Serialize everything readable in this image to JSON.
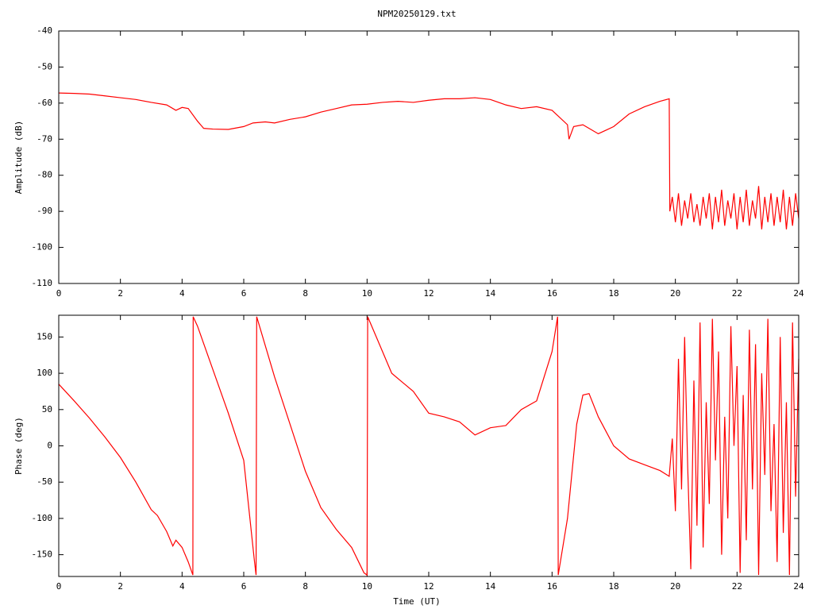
{
  "chart_data": [
    {
      "type": "line",
      "title": "NPM20250129.txt",
      "ylabel": "Amplitude (dB)",
      "color": "#ff0000",
      "xlim": [
        0,
        24
      ],
      "xticks": [
        0,
        2,
        4,
        6,
        8,
        10,
        12,
        14,
        16,
        18,
        20,
        22,
        24
      ],
      "ylim": [
        -110,
        -40
      ],
      "yticks": [
        -110,
        -100,
        -90,
        -80,
        -70,
        -60,
        -50,
        -40
      ],
      "x": [
        0,
        0.5,
        1,
        1.5,
        2,
        2.5,
        3,
        3.5,
        3.8,
        4,
        4.2,
        4.5,
        4.7,
        5,
        5.5,
        6,
        6.3,
        6.7,
        7,
        7.5,
        8,
        8.5,
        9,
        9.5,
        10,
        10.5,
        11,
        11.5,
        12,
        12.5,
        13,
        13.5,
        14,
        14.5,
        15,
        15.5,
        16,
        16.5,
        16.55,
        16.7,
        17,
        17.5,
        18,
        18.5,
        19,
        19.5,
        19.8,
        19.82,
        19.9,
        20,
        20.1,
        20.2,
        20.3,
        20.4,
        20.5,
        20.6,
        20.7,
        20.8,
        20.9,
        21,
        21.1,
        21.2,
        21.3,
        21.4,
        21.5,
        21.6,
        21.7,
        21.8,
        21.9,
        22,
        22.1,
        22.2,
        22.3,
        22.4,
        22.5,
        22.6,
        22.7,
        22.8,
        22.9,
        23,
        23.1,
        23.2,
        23.3,
        23.4,
        23.5,
        23.6,
        23.7,
        23.8,
        23.9,
        24
      ],
      "values": [
        -57.2,
        -57.3,
        -57.5,
        -58,
        -58.5,
        -59,
        -59.8,
        -60.5,
        -62,
        -61.2,
        -61.5,
        -65,
        -67,
        -67.2,
        -67.3,
        -66.5,
        -65.5,
        -65.2,
        -65.5,
        -64.5,
        -63.8,
        -62.5,
        -61.5,
        -60.5,
        -60.3,
        -59.8,
        -59.5,
        -59.8,
        -59.2,
        -58.8,
        -58.8,
        -58.5,
        -59,
        -60.5,
        -61.5,
        -61,
        -62,
        -66,
        -70,
        -66.5,
        -66,
        -68.5,
        -66.5,
        -63,
        -61,
        -59.5,
        -58.8,
        -90,
        -86,
        -93,
        -85,
        -94,
        -87,
        -92,
        -85,
        -93,
        -88,
        -94,
        -86,
        -92,
        -85,
        -95,
        -86,
        -93,
        -84,
        -94,
        -87,
        -92,
        -85,
        -95,
        -86,
        -93,
        -84,
        -94,
        -87,
        -92,
        -83,
        -95,
        -86,
        -93,
        -85,
        -94,
        -86,
        -93,
        -84,
        -95,
        -86,
        -94,
        -85,
        -92
      ]
    },
    {
      "type": "line",
      "ylabel": "Phase (deg)",
      "xlabel": "Time (UT)",
      "color": "#ff0000",
      "xlim": [
        0,
        24
      ],
      "xticks": [
        0,
        2,
        4,
        6,
        8,
        10,
        12,
        14,
        16,
        18,
        20,
        22,
        24
      ],
      "ylim": [
        -180,
        180
      ],
      "yticks": [
        -150,
        -100,
        -50,
        0,
        50,
        100,
        150
      ],
      "x": [
        0,
        0.5,
        1,
        1.5,
        2,
        2.5,
        3,
        3.2,
        3.5,
        3.7,
        3.8,
        4,
        4.2,
        4.35,
        4.36,
        4.5,
        5,
        5.5,
        6,
        6.35,
        6.4,
        6.42,
        7,
        7.5,
        8,
        8.5,
        9,
        9.5,
        9.9,
        10,
        10.02,
        10.3,
        10.8,
        11.5,
        12,
        12.5,
        13,
        13.5,
        14,
        14.5,
        15,
        15.5,
        16,
        16.18,
        16.2,
        16.5,
        16.8,
        17,
        17.2,
        17.5,
        18,
        18.5,
        19,
        19.5,
        19.8,
        19.9,
        20,
        20.1,
        20.2,
        20.3,
        20.4,
        20.5,
        20.6,
        20.7,
        20.8,
        20.9,
        21,
        21.1,
        21.2,
        21.3,
        21.4,
        21.5,
        21.6,
        21.7,
        21.8,
        21.9,
        22,
        22.1,
        22.2,
        22.3,
        22.4,
        22.5,
        22.6,
        22.7,
        22.8,
        22.9,
        23,
        23.1,
        23.2,
        23.3,
        23.4,
        23.5,
        23.6,
        23.7,
        23.8,
        23.9,
        24
      ],
      "values": [
        85,
        62,
        38,
        12,
        -16,
        -50,
        -88,
        -96,
        -118,
        -138,
        -130,
        -140,
        -160,
        -178,
        178,
        165,
        105,
        45,
        -20,
        -160,
        -178,
        178,
        95,
        30,
        -35,
        -85,
        -115,
        -140,
        -175,
        -178,
        178,
        150,
        100,
        75,
        45,
        40,
        33,
        15,
        25,
        28,
        50,
        62,
        130,
        178,
        -178,
        -100,
        30,
        70,
        72,
        40,
        0,
        -18,
        -26,
        -34,
        -42,
        10,
        -90,
        120,
        -60,
        150,
        -30,
        -170,
        90,
        -110,
        170,
        -140,
        60,
        -80,
        175,
        -20,
        130,
        -150,
        40,
        -100,
        165,
        0,
        110,
        -175,
        70,
        -130,
        160,
        -60,
        140,
        -178,
        100,
        -40,
        175,
        -90,
        30,
        -160,
        150,
        -120,
        60,
        -178,
        170,
        -70,
        120
      ]
    }
  ]
}
